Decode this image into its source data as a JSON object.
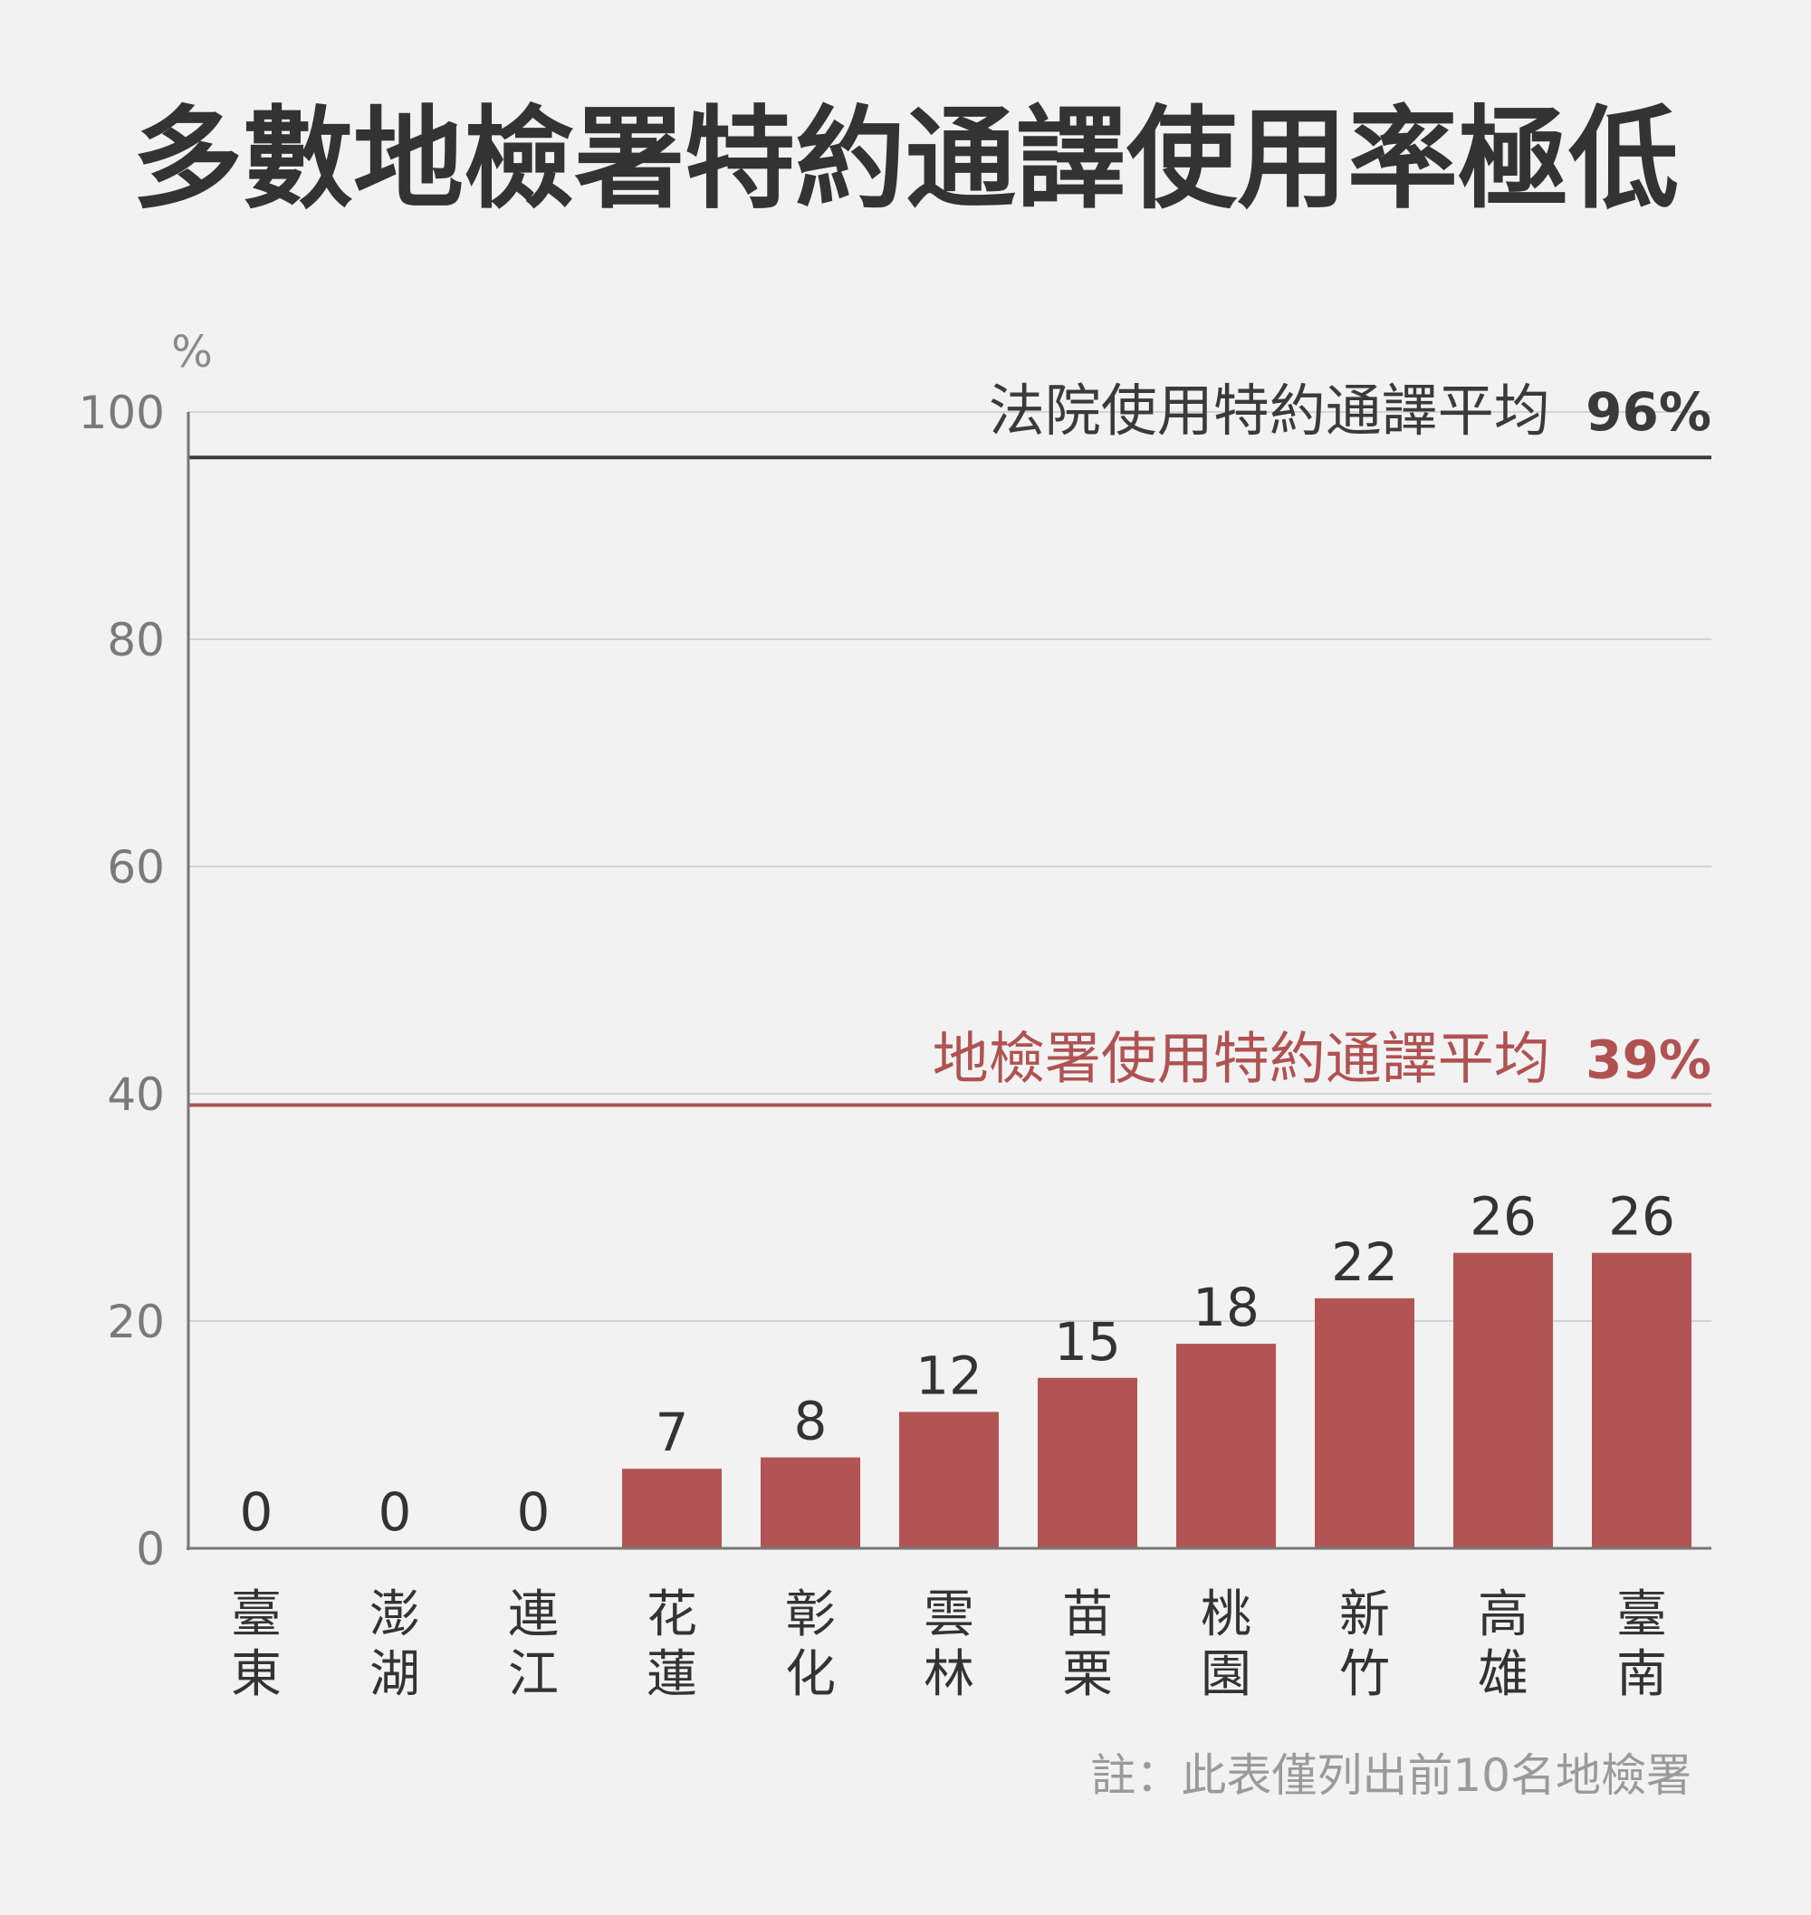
{
  "chart_data": {
    "type": "bar",
    "title": "多數地檢署特約通譯使用率極低",
    "y_unit": "%",
    "ylim": [
      0,
      100
    ],
    "yticks": [
      0,
      20,
      40,
      60,
      80,
      100
    ],
    "grid": true,
    "categories": [
      [
        "臺",
        "東"
      ],
      [
        "澎",
        "湖"
      ],
      [
        "連",
        "江"
      ],
      [
        "花",
        "蓮"
      ],
      [
        "彰",
        "化"
      ],
      [
        "雲",
        "林"
      ],
      [
        "苗",
        "栗"
      ],
      [
        "桃",
        "園"
      ],
      [
        "新",
        "竹"
      ],
      [
        "高",
        "雄"
      ],
      [
        "臺",
        "南"
      ]
    ],
    "values": [
      0,
      0,
      0,
      7,
      8,
      12,
      15,
      18,
      22,
      26,
      26
    ],
    "reference_lines": [
      {
        "label": "法院使用特約通譯平均",
        "value": 96,
        "value_text": "96%",
        "color": "#3a3a3a"
      },
      {
        "label": "地檢署使用特約通譯平均",
        "value": 39,
        "value_text": "39%",
        "color": "#b05252"
      }
    ],
    "note": "註：此表僅列出前10名地檢署"
  },
  "colors": {
    "bar": "#b35454",
    "grid": "#d4d4d4",
    "axis": "#777777",
    "background": "#f2f2f2"
  }
}
